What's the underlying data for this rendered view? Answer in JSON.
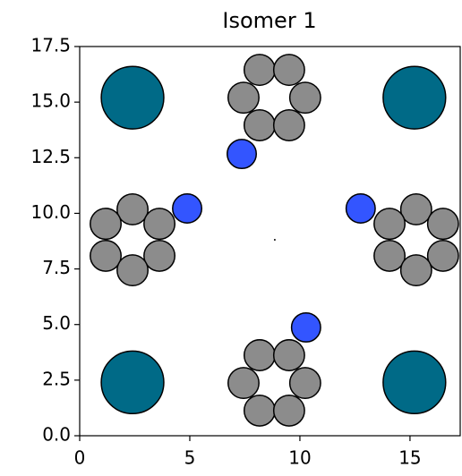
{
  "chart_data": {
    "type": "scatter",
    "title": "Isomer 1",
    "xlim": [
      0,
      17.28
    ],
    "ylim": [
      0,
      17.5
    ],
    "xticks": [
      0,
      5,
      10,
      15
    ],
    "yticks": [
      {
        "value": 0,
        "label": "0.0"
      },
      2.5,
      {
        "value": 5,
        "label": "5.0"
      },
      7.5,
      {
        "value": 10,
        "label": "10.0"
      },
      12.5,
      {
        "value": 15,
        "label": "15.0"
      },
      17.5
    ],
    "series": [
      {
        "color": "#006a87",
        "marker_radius": 1.42,
        "x": [
          2.4,
          15.2,
          2.4,
          15.2
        ],
        "values": [
          15.2,
          15.2,
          2.4,
          2.4
        ]
      },
      {
        "color": "#8c8c8c",
        "marker_radius": 0.7,
        "x": [
          8.17,
          9.51,
          7.44,
          10.24,
          8.17,
          9.51,
          2.4,
          1.18,
          3.62,
          1.18,
          3.62,
          2.4,
          15.28,
          14.07,
          16.5,
          14.07,
          16.5,
          15.28,
          8.17,
          9.51,
          7.44,
          10.24,
          8.17,
          9.51
        ],
        "values": [
          16.45,
          16.45,
          15.2,
          15.2,
          13.96,
          13.96,
          10.18,
          9.53,
          9.53,
          8.09,
          8.09,
          7.44,
          10.18,
          9.53,
          9.53,
          8.09,
          8.09,
          7.44,
          3.62,
          3.62,
          2.37,
          2.37,
          1.13,
          1.13
        ]
      },
      {
        "color": "#3355ff",
        "marker_radius": 0.66,
        "x": [
          7.36,
          4.88,
          12.76,
          10.28
        ],
        "values": [
          12.67,
          10.22,
          10.22,
          4.87
        ]
      },
      {
        "color": "#000000",
        "marker_radius": 0.04,
        "x": [
          8.86
        ],
        "values": [
          8.81
        ]
      }
    ]
  }
}
